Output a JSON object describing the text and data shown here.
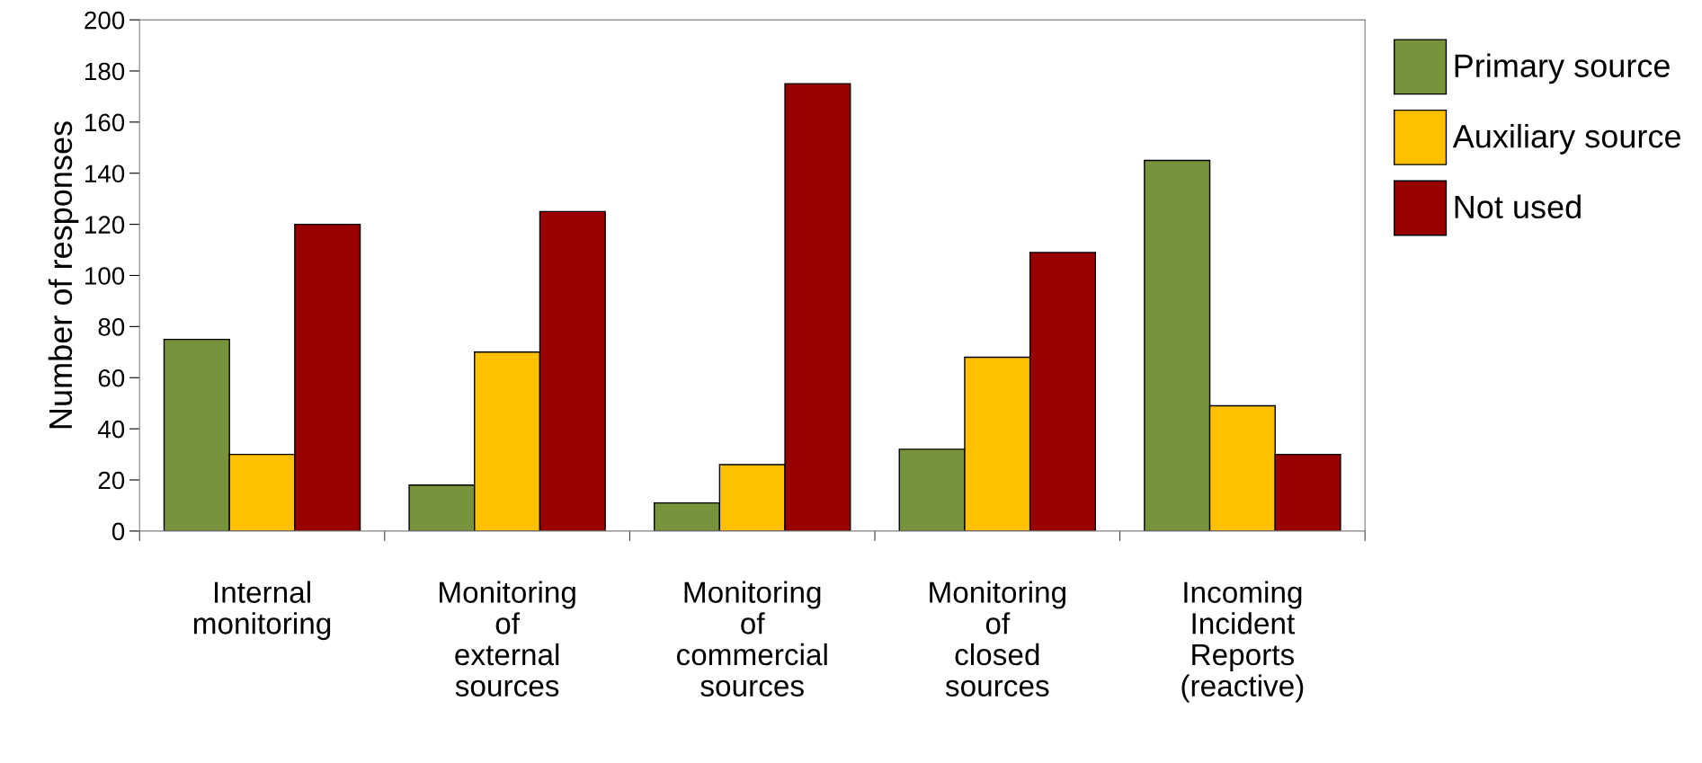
{
  "chart_data": {
    "type": "bar",
    "ylabel": "Number of responses",
    "categories": [
      "Internal\nmonitoring",
      "Monitoring\nof\nexternal\nsources",
      "Monitoring\nof\ncommercial\nsources",
      "Monitoring\nof\nclosed\nsources",
      "Incoming\nIncident\nReports\n(reactive)"
    ],
    "series": [
      {
        "name": "Primary source",
        "color": "#77933c",
        "values": [
          75,
          18,
          11,
          32,
          145
        ]
      },
      {
        "name": "Auxiliary source",
        "color": "#ffc000",
        "values": [
          30,
          70,
          26,
          68,
          49
        ]
      },
      {
        "name": "Not used",
        "color": "#990000",
        "values": [
          120,
          125,
          175,
          109,
          30
        ]
      }
    ],
    "ylim": [
      0,
      200
    ],
    "yticks": [
      0,
      20,
      40,
      60,
      80,
      100,
      120,
      140,
      160,
      180,
      200
    ],
    "grid": false,
    "legend": "right"
  }
}
